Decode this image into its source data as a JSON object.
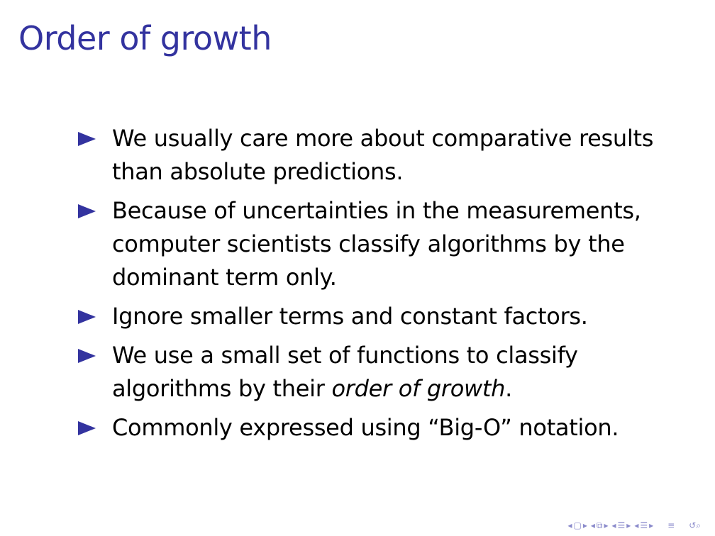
{
  "slide": {
    "title": "Order of growth",
    "accent_color": "#33339f",
    "bullets": [
      {
        "text": "We usually care more about comparative results than absolute predictions."
      },
      {
        "text": "Because of uncertainties in the measurements, computer scientists classify algorithms by the dominant term only."
      },
      {
        "text": "Ignore smaller terms and constant factors."
      },
      {
        "text_before": "We use a small set of functions to classify algorithms by their ",
        "text_em": "order of growth",
        "text_after": "."
      },
      {
        "text": "Commonly expressed using “Big-O” notation."
      }
    ]
  },
  "nav": {
    "icons": [
      "nav-prev-arrow-icon",
      "frame-icon",
      "nav-next-arrow-icon",
      "nav-prev-arrow-icon",
      "subsection-icon",
      "nav-next-arrow-icon",
      "nav-prev-arrow-icon",
      "section-icon",
      "nav-next-arrow-icon",
      "nav-prev-arrow-icon",
      "section-icon",
      "nav-next-arrow-icon",
      "align-icon",
      "search-icon"
    ],
    "glyphs": {
      "left": "◂",
      "right": "▸",
      "frame": "▢",
      "subsection": "⧉",
      "section": "☰",
      "align": "≡",
      "search": "↺⌕"
    }
  }
}
